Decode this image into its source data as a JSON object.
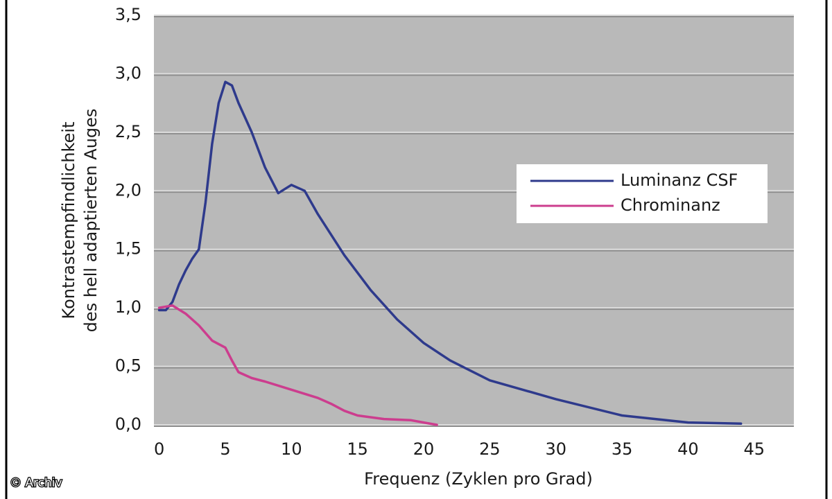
{
  "chart_data": {
    "type": "line",
    "xlabel": "Frequenz (Zyklen pro Grad)",
    "ylabel": [
      "Kontrastempfindlichkeit",
      "des hell adaptierten Auges"
    ],
    "credit": "© Archiv",
    "xlim": [
      -0.4,
      48
    ],
    "ylim": [
      0,
      3.5
    ],
    "xticks": [
      0,
      5,
      10,
      15,
      20,
      25,
      30,
      35,
      40,
      45
    ],
    "yticks": [
      {
        "value": 0,
        "label": "0,0"
      },
      {
        "value": 0.5,
        "label": "0,5"
      },
      {
        "value": 1,
        "label": "1,0"
      },
      {
        "value": 1.5,
        "label": "1,5"
      },
      {
        "value": 2,
        "label": "2,0"
      },
      {
        "value": 2.5,
        "label": "2,5"
      },
      {
        "value": 3,
        "label": "3,0"
      },
      {
        "value": 3.5,
        "label": "3,5"
      }
    ],
    "grid": true,
    "legend": "right",
    "series": [
      {
        "name": "Luminanz CSF",
        "color": "#2e3a8c",
        "x": [
          0,
          0.5,
          1,
          1.5,
          2,
          2.5,
          3,
          3.5,
          4,
          4.5,
          5,
          5.5,
          6,
          7,
          8,
          9,
          10,
          11,
          12,
          14,
          16,
          18,
          20,
          22,
          25,
          30,
          35,
          40,
          44
        ],
        "values": [
          0.98,
          0.98,
          1.05,
          1.2,
          1.32,
          1.42,
          1.5,
          1.9,
          2.4,
          2.75,
          2.93,
          2.9,
          2.75,
          2.5,
          2.2,
          1.98,
          2.05,
          2.0,
          1.8,
          1.45,
          1.15,
          0.9,
          0.7,
          0.55,
          0.38,
          0.22,
          0.08,
          0.02,
          0.01
        ]
      },
      {
        "name": "Chrominanz",
        "color": "#cc3d8e",
        "x": [
          0,
          1,
          2,
          3,
          4,
          5,
          5.5,
          6,
          7,
          8,
          10,
          12,
          13,
          14,
          15,
          17,
          19,
          20,
          21
        ],
        "values": [
          1.0,
          1.02,
          0.95,
          0.85,
          0.72,
          0.66,
          0.55,
          0.45,
          0.4,
          0.37,
          0.3,
          0.23,
          0.18,
          0.12,
          0.08,
          0.05,
          0.04,
          0.02,
          0
        ]
      }
    ]
  }
}
